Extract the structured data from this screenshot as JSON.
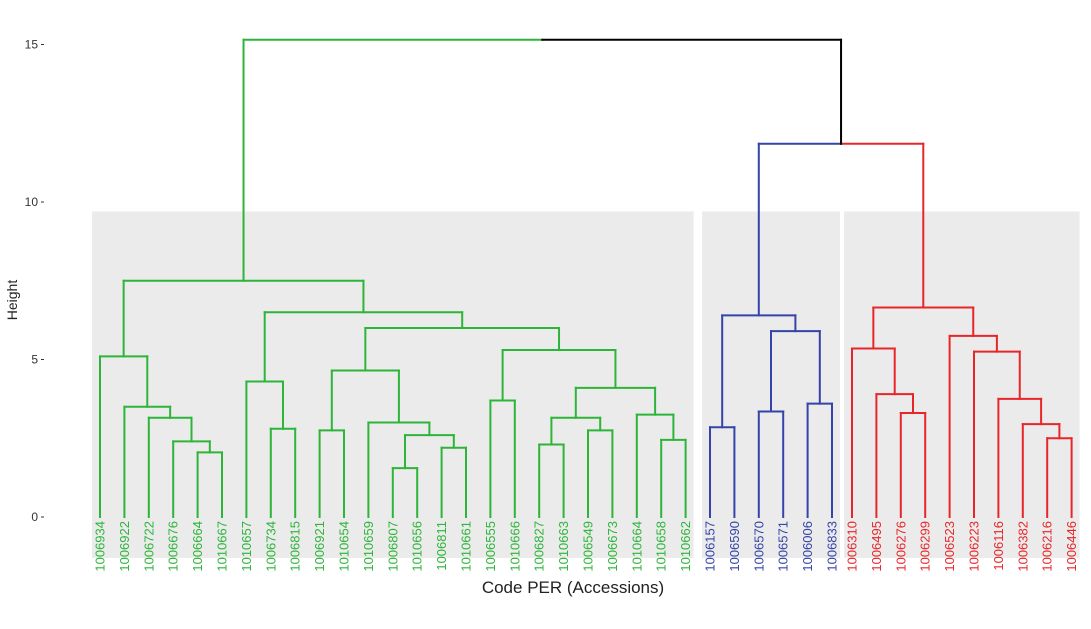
{
  "chart_data": {
    "type": "dendrogram",
    "title": "",
    "xlabel": "Code PER (Accessions)",
    "ylabel": "Height",
    "ylim": [
      -1.3,
      15.8
    ],
    "yticks": [
      0,
      5,
      10,
      15
    ],
    "grid": false,
    "colors": {
      "c1": "#2db53a",
      "c2": "#3444a8",
      "c3": "#e8262a",
      "root": "#000000",
      "panel": "#ebebeb"
    },
    "clusters": [
      {
        "name": "cluster-1",
        "color": "#2db53a",
        "panel_top": 9.7,
        "leaves": [
          "1006934",
          "1006922",
          "1006722",
          "1006676",
          "1006664",
          "1010667",
          "1010657",
          "1006734",
          "1006815",
          "1006921",
          "1010654",
          "1010659",
          "1006807",
          "1010656",
          "1006811",
          "1010661",
          "1006555",
          "1010666",
          "1006827",
          "1010663",
          "1006549",
          "1006673",
          "1010664",
          "1010658",
          "1010662"
        ]
      },
      {
        "name": "cluster-2",
        "color": "#3444a8",
        "panel_top": 9.7,
        "leaves": [
          "1006157",
          "1006590",
          "1006570",
          "1006571",
          "1006006",
          "1006833"
        ]
      },
      {
        "name": "cluster-3",
        "color": "#e8262a",
        "panel_top": 9.7,
        "leaves": [
          "1006310",
          "1006495",
          "1006276",
          "1006299",
          "1006523",
          "1006223",
          "1006116",
          "1006382",
          "1006216",
          "1006446"
        ]
      }
    ],
    "merges": [
      {
        "a": "L:1006664",
        "b": "L:1010667",
        "h": 2.05,
        "c": "c1"
      },
      {
        "a": "L:1006676",
        "b": "M:0",
        "h": 2.4,
        "c": "c1"
      },
      {
        "a": "L:1006722",
        "b": "M:1",
        "h": 3.15,
        "c": "c1"
      },
      {
        "a": "L:1006922",
        "b": "M:2",
        "h": 3.5,
        "c": "c1"
      },
      {
        "a": "L:1006934",
        "b": "M:3",
        "h": 5.1,
        "c": "c1"
      },
      {
        "a": "L:1006734",
        "b": "L:1006815",
        "h": 2.8,
        "c": "c1"
      },
      {
        "a": "L:1010657",
        "b": "M:5",
        "h": 4.3,
        "c": "c1"
      },
      {
        "a": "L:1006921",
        "b": "L:1010654",
        "h": 2.75,
        "c": "c1"
      },
      {
        "a": "L:1006807",
        "b": "L:1010656",
        "h": 1.55,
        "c": "c1"
      },
      {
        "a": "L:1006811",
        "b": "L:1010661",
        "h": 2.2,
        "c": "c1"
      },
      {
        "a": "M:8",
        "b": "M:9",
        "h": 2.6,
        "c": "c1"
      },
      {
        "a": "L:1010659",
        "b": "M:10",
        "h": 3.0,
        "c": "c1"
      },
      {
        "a": "M:7",
        "b": "M:11",
        "h": 4.65,
        "c": "c1"
      },
      {
        "a": "L:1006555",
        "b": "L:1010666",
        "h": 3.7,
        "c": "c1"
      },
      {
        "a": "L:1006827",
        "b": "L:1010663",
        "h": 2.3,
        "c": "c1"
      },
      {
        "a": "L:1006549",
        "b": "L:1006673",
        "h": 2.75,
        "c": "c1"
      },
      {
        "a": "M:14",
        "b": "M:15",
        "h": 3.15,
        "c": "c1"
      },
      {
        "a": "L:1010658",
        "b": "L:1010662",
        "h": 2.45,
        "c": "c1"
      },
      {
        "a": "L:1010664",
        "b": "M:17",
        "h": 3.25,
        "c": "c1"
      },
      {
        "a": "M:16",
        "b": "M:18",
        "h": 4.1,
        "c": "c1"
      },
      {
        "a": "M:13",
        "b": "M:19",
        "h": 5.3,
        "c": "c1"
      },
      {
        "a": "M:12",
        "b": "M:20",
        "h": 6.0,
        "c": "c1"
      },
      {
        "a": "M:6",
        "b": "M:21",
        "h": 6.5,
        "c": "c1"
      },
      {
        "a": "M:4",
        "b": "M:22",
        "h": 7.5,
        "c": "c1"
      },
      {
        "a": "L:1006157",
        "b": "L:1006590",
        "h": 2.85,
        "c": "c2"
      },
      {
        "a": "L:1006570",
        "b": "L:1006571",
        "h": 3.35,
        "c": "c2"
      },
      {
        "a": "L:1006006",
        "b": "L:1006833",
        "h": 3.6,
        "c": "c2"
      },
      {
        "a": "M:25",
        "b": "M:26",
        "h": 5.9,
        "c": "c2"
      },
      {
        "a": "M:24",
        "b": "M:27",
        "h": 6.4,
        "c": "c2"
      },
      {
        "a": "L:1006276",
        "b": "L:1006299",
        "h": 3.3,
        "c": "c3"
      },
      {
        "a": "L:1006495",
        "b": "M:29",
        "h": 3.9,
        "c": "c3"
      },
      {
        "a": "L:1006310",
        "b": "M:30",
        "h": 5.35,
        "c": "c3"
      },
      {
        "a": "L:1006216",
        "b": "L:1006446",
        "h": 2.5,
        "c": "c3"
      },
      {
        "a": "L:1006382",
        "b": "M:32",
        "h": 2.95,
        "c": "c3"
      },
      {
        "a": "L:1006116",
        "b": "M:33",
        "h": 3.75,
        "c": "c3"
      },
      {
        "a": "L:1006223",
        "b": "M:34",
        "h": 5.25,
        "c": "c3"
      },
      {
        "a": "L:1006523",
        "b": "M:35",
        "h": 5.75,
        "c": "c3"
      },
      {
        "a": "M:31",
        "b": "M:36",
        "h": 6.65,
        "c": "c3"
      },
      {
        "a": "M:28",
        "b": "M:37",
        "h": 11.85,
        "c": "split23"
      },
      {
        "a": "M:23",
        "b": "M:38",
        "h": 15.15,
        "c": "root"
      }
    ]
  }
}
